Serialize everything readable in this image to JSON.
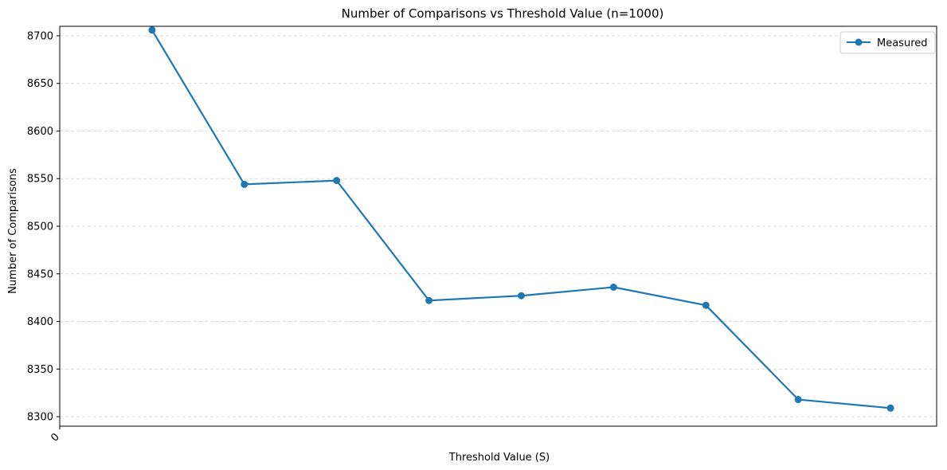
{
  "chart_data": {
    "type": "line",
    "title": "Number of Comparisons vs Threshold Value (n=1000)",
    "xlabel": "Threshold Value (S)",
    "ylabel": "Number of Comparisons",
    "x": [
      1,
      2,
      3,
      4,
      5,
      6,
      7,
      8,
      9
    ],
    "x_tick_labels": [
      "0"
    ],
    "x_tick_values": [
      0
    ],
    "xlim": [
      0,
      9.5
    ],
    "ylim": [
      8290,
      8710
    ],
    "y_ticks": [
      8300,
      8350,
      8400,
      8450,
      8500,
      8550,
      8600,
      8650,
      8700
    ],
    "series": [
      {
        "name": "Measured",
        "values": [
          8706,
          8544,
          8548,
          8422,
          8427,
          8436,
          8417,
          8318,
          8309
        ],
        "color": "#1f77b4"
      }
    ],
    "grid": "y-dashed",
    "legend": "top-right"
  }
}
